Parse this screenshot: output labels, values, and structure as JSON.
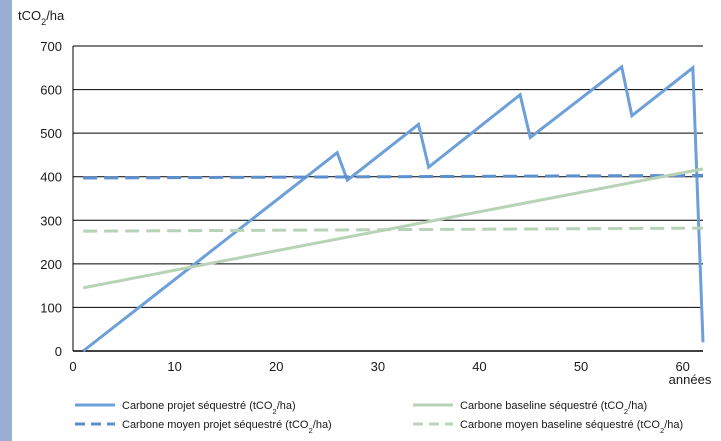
{
  "chart_data": {
    "type": "line",
    "ylabel": "tCO2/ha",
    "xlabel": "années",
    "xlim": [
      0,
      62
    ],
    "ylim": [
      0,
      700
    ],
    "x_ticks": [
      "0",
      "10",
      "20",
      "30",
      "40",
      "50",
      "60"
    ],
    "y_ticks": [
      "0",
      "100",
      "200",
      "300",
      "400",
      "500",
      "600",
      "700"
    ],
    "series": [
      {
        "name": "Carbone projet séquestré (tCO2/ha)",
        "style": "solid",
        "color": "#6d9fd9",
        "points": [
          [
            1,
            0
          ],
          [
            26,
            455
          ],
          [
            27,
            392
          ],
          [
            34,
            520
          ],
          [
            35,
            422
          ],
          [
            44,
            588
          ],
          [
            45,
            490
          ],
          [
            54,
            652
          ],
          [
            55,
            540
          ],
          [
            61,
            650
          ],
          [
            62,
            20
          ]
        ]
      },
      {
        "name": "Carbone moyen projet séquestré (tCO2/ha)",
        "style": "dashed",
        "color": "#5b8fd0",
        "points": [
          [
            1,
            397
          ],
          [
            62,
            403
          ]
        ]
      },
      {
        "name": "Carbone baseline séquestré (tCO2/ha)",
        "style": "solid",
        "color": "#b7d2b6",
        "points": [
          [
            1,
            145
          ],
          [
            62,
            418
          ]
        ]
      },
      {
        "name": "Carbone moyen baseline séquestré (tCO2/ha)",
        "style": "dashed",
        "color": "#b7d2b6",
        "points": [
          [
            1,
            275
          ],
          [
            62,
            282
          ]
        ]
      }
    ]
  }
}
